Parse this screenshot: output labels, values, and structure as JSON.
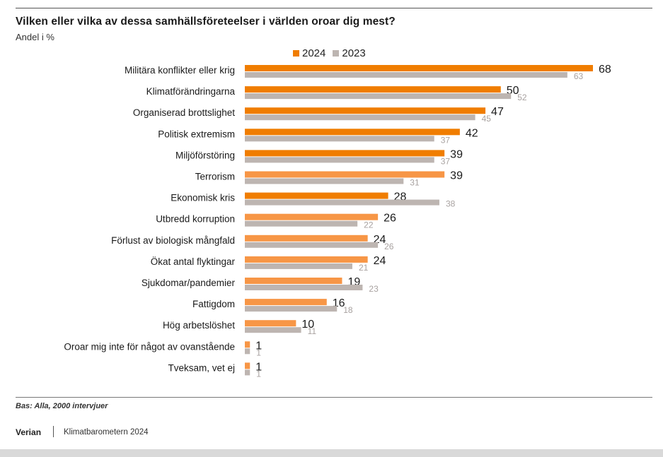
{
  "header": {
    "title": "Vilken eller vilka av dessa samhällsföreteelser i världen oroar dig mest?",
    "subtitle": "Andel i %"
  },
  "legend": {
    "series_2024": "2024",
    "series_2023": "2023"
  },
  "colors": {
    "orange_dark": "#f07d00",
    "orange_light": "#f79646",
    "gray": "#bdb5b1"
  },
  "chart_data": {
    "type": "bar",
    "orientation": "horizontal",
    "title": "Vilken eller vilka av dessa samhällsföreteelser i världen oroar dig mest?",
    "subtitle": "Andel i %",
    "xlim": [
      0,
      68
    ],
    "grid": false,
    "legend_position": "top",
    "categories": [
      "Militära konflikter eller krig",
      "Klimatförändringarna",
      "Organiserad brottslighet",
      "Politisk extremism",
      "Miljöförstöring",
      "Terrorism",
      "Ekonomisk kris",
      "Utbredd korruption",
      "Förlust av biologisk mångfald",
      "Ökat antal flyktingar",
      "Sjukdomar/pandemier",
      "Fattigdom",
      "Hög arbetslöshet",
      "Oroar mig inte för något av ovanstående",
      "Tveksam, vet ej"
    ],
    "series": [
      {
        "name": "2024",
        "values": [
          68,
          50,
          47,
          42,
          39,
          39,
          28,
          26,
          24,
          24,
          19,
          16,
          10,
          1,
          1
        ],
        "shades": [
          "dark",
          "dark",
          "dark",
          "dark",
          "dark",
          "light",
          "dark",
          "light",
          "light",
          "light",
          "light",
          "light",
          "light",
          "light",
          "light"
        ]
      },
      {
        "name": "2023",
        "values": [
          63,
          52,
          45,
          37,
          37,
          31,
          38,
          22,
          26,
          21,
          23,
          18,
          11,
          1,
          1
        ]
      }
    ]
  },
  "footer": {
    "base_note": "Bas: Alla, 2000 intervjuer",
    "brand": "Verian",
    "source": "Klimatbarometern 2024"
  }
}
